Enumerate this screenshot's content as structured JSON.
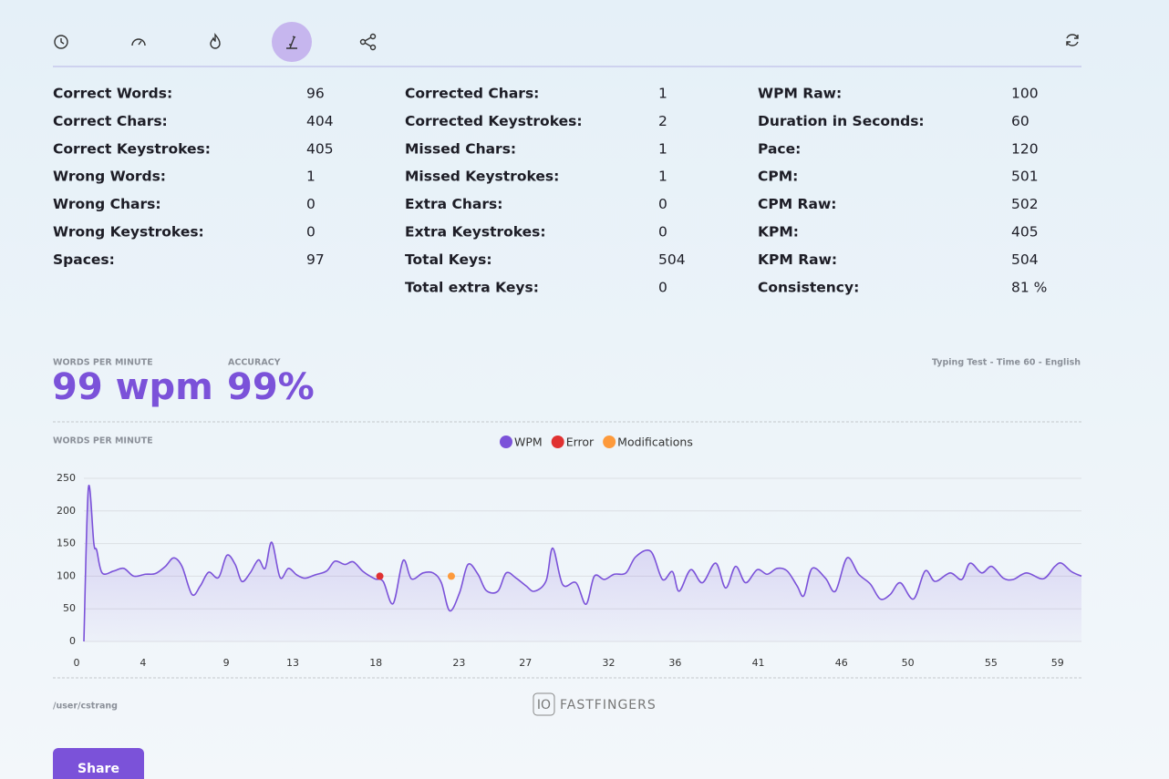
{
  "stats": {
    "columns": [
      [
        {
          "label": "Correct Words:",
          "value": 96
        },
        {
          "label": "Correct Chars:",
          "value": 404
        },
        {
          "label": "Correct Keystrokes:",
          "value": 405
        },
        {
          "label": "Wrong Words:",
          "value": 1
        },
        {
          "label": "Wrong Chars:",
          "value": 0
        },
        {
          "label": "Wrong Keystrokes:",
          "value": 0
        },
        {
          "label": "Spaces:",
          "value": 97
        }
      ],
      [
        {
          "label": "Corrected Chars:",
          "value": 1
        },
        {
          "label": "Corrected Keystrokes:",
          "value": 2
        },
        {
          "label": "Missed Chars:",
          "value": 1
        },
        {
          "label": "Missed Keystrokes:",
          "value": 1
        },
        {
          "label": "Extra Chars:",
          "value": 0
        },
        {
          "label": "Extra Keystrokes:",
          "value": 0
        },
        {
          "label": "Total Keys:",
          "value": 504
        },
        {
          "label": "Total extra Keys:",
          "value": 0
        }
      ],
      [
        {
          "label": "WPM Raw:",
          "value": 100
        },
        {
          "label": "Duration in Seconds:",
          "value": 60
        },
        {
          "label": "Pace:",
          "value": 120
        },
        {
          "label": "CPM:",
          "value": 501
        },
        {
          "label": "CPM Raw:",
          "value": 502
        },
        {
          "label": "KPM:",
          "value": 405
        },
        {
          "label": "KPM Raw:",
          "value": 504
        },
        {
          "label": "Consistency:",
          "value": "81 %"
        }
      ]
    ]
  },
  "summary": {
    "wpm_label": "WORDS PER MINUTE",
    "wpm": "99 wpm",
    "accuracy_label": "ACCURACY",
    "accuracy": "99%",
    "test_info": "Typing Test - Time 60 - English"
  },
  "chart_data": {
    "type": "line",
    "y_label": "WORDS PER MINUTE",
    "xlim": [
      0,
      60
    ],
    "ylim": [
      0,
      250
    ],
    "yticks": [
      0,
      50,
      100,
      150,
      200,
      250
    ],
    "xticks": [
      0,
      4,
      9,
      13,
      18,
      23,
      27,
      32,
      36,
      41,
      46,
      50,
      55,
      59
    ],
    "grid": true,
    "series": [
      {
        "name": "WPM",
        "color": "#7b52d9",
        "x": [
          0,
          0.27,
          0.6,
          0.77,
          1.1,
          1.8,
          2.4,
          3.0,
          3.7,
          4.3,
          4.9,
          5.4,
          5.9,
          6.5,
          7.0,
          7.5,
          8.1,
          8.6,
          9.1,
          9.5,
          10.0,
          10.5,
          10.9,
          11.3,
          11.8,
          12.3,
          12.8,
          13.3,
          13.9,
          14.6,
          15.1,
          15.7,
          16.2,
          16.8,
          17.5,
          18.0,
          18.6,
          19.2,
          19.7,
          20.4,
          21.0,
          21.5,
          22.0,
          22.6,
          23.1,
          23.7,
          24.2,
          24.9,
          25.4,
          26.0,
          26.6,
          27.1,
          27.8,
          28.2,
          28.8,
          29.6,
          30.2,
          30.7,
          31.3,
          31.9,
          32.6,
          33.2,
          34.1,
          34.8,
          35.4,
          35.8,
          36.5,
          37.2,
          38.0,
          38.6,
          39.2,
          39.8,
          40.5,
          41.1,
          41.7,
          42.3,
          42.9,
          43.3,
          43.8,
          44.6,
          45.2,
          45.9,
          46.6,
          47.3,
          47.9,
          48.5,
          49.1,
          49.9,
          50.6,
          51.2,
          52.1,
          52.8,
          53.3,
          54.0,
          54.6,
          55.3,
          55.9,
          56.7,
          57.7,
          58.4,
          58.8,
          59.4,
          60.0
        ],
        "values": [
          0,
          235,
          150,
          140,
          105,
          108,
          112,
          100,
          103,
          104,
          115,
          128,
          115,
          72,
          85,
          106,
          98,
          132,
          118,
          92,
          105,
          125,
          112,
          152,
          98,
          112,
          102,
          97,
          102,
          108,
          123,
          118,
          122,
          107,
          96,
          92,
          58,
          124,
          96,
          105,
          105,
          90,
          47,
          75,
          118,
          103,
          78,
          77,
          105,
          97,
          85,
          77,
          93,
          143,
          87,
          90,
          57,
          100,
          95,
          103,
          105,
          130,
          138,
          95,
          107,
          77,
          110,
          90,
          120,
          82,
          115,
          90,
          110,
          103,
          112,
          108,
          85,
          70,
          112,
          97,
          77,
          128,
          103,
          88,
          65,
          72,
          90,
          65,
          108,
          92,
          105,
          95,
          120,
          105,
          115,
          97,
          95,
          105,
          96,
          115,
          120,
          107,
          100
        ]
      },
      {
        "name": "Error",
        "color": "#e03131",
        "x": [
          17.8
        ],
        "values": [
          100
        ]
      },
      {
        "name": "Modifications",
        "color": "#fd9a3c",
        "x": [
          22.1
        ],
        "values": [
          100
        ]
      }
    ]
  },
  "footer": {
    "user": "/user/cstrang",
    "logo_mark": "IO",
    "logo_text": "FASTFINGERS",
    "button": "Share"
  }
}
